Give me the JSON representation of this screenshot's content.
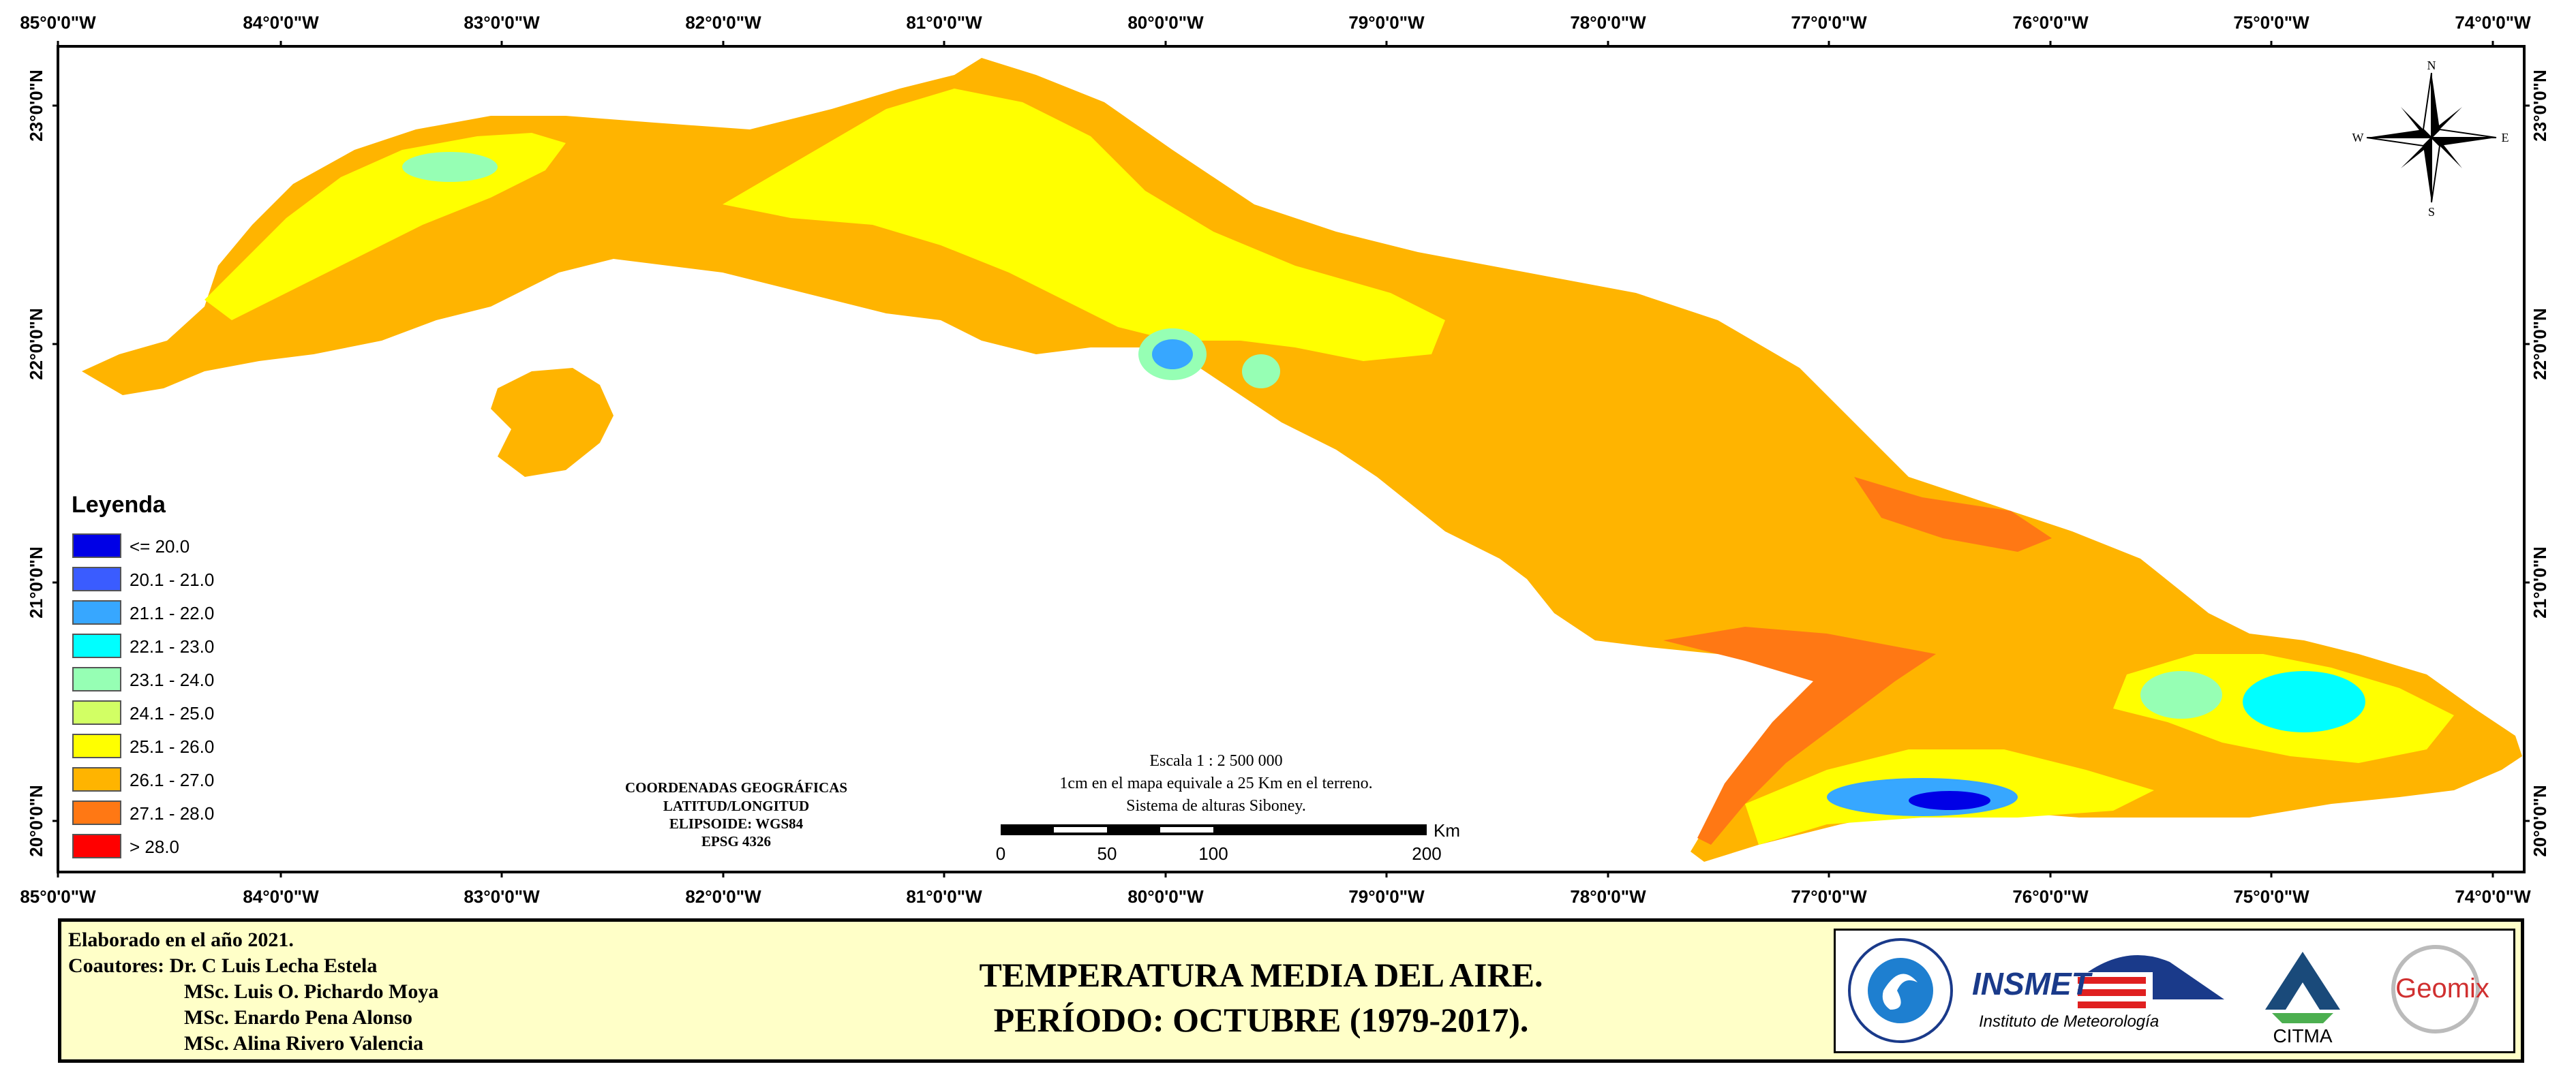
{
  "map": {
    "longitude_labels": [
      "85°0'0\"W",
      "84°0'0\"W",
      "83°0'0\"W",
      "82°0'0\"W",
      "81°0'0\"W",
      "80°0'0\"W",
      "79°0'0\"W",
      "78°0'0\"W",
      "77°0'0\"W",
      "76°0'0\"W",
      "75°0'0\"W",
      "74°0'0\"W"
    ],
    "latitude_labels": [
      "23°0'0\"N",
      "22°0'0\"N",
      "21°0'0\"N",
      "20°0'0\"N"
    ],
    "compass": {
      "n": "N",
      "s": "S",
      "e": "E",
      "w": "W"
    }
  },
  "legend": {
    "title": "Leyenda",
    "items": [
      {
        "label": "<= 20.0",
        "color": "#0000e6"
      },
      {
        "label": "20.1 - 21.0",
        "color": "#3a5cff"
      },
      {
        "label": "21.1 - 22.0",
        "color": "#37a7ff"
      },
      {
        "label": "22.1 - 23.0",
        "color": "#00ffff"
      },
      {
        "label": "23.1 - 24.0",
        "color": "#96ffb4"
      },
      {
        "label": "24.1 - 25.0",
        "color": "#d2ff64"
      },
      {
        "label": "25.1 - 26.0",
        "color": "#ffff00"
      },
      {
        "label": "26.1 - 27.0",
        "color": "#ffb400"
      },
      {
        "label": "27.1 - 28.0",
        "color": "#ff7814"
      },
      {
        "label": "> 28.0",
        "color": "#ff0000"
      }
    ]
  },
  "coordinates_info": {
    "line1": "COORDENADAS GEOGRÁFICAS",
    "line2": "LATITUD/LONGITUD",
    "line3": "ELIPSOIDE: WGS84",
    "line4": "EPSG 4326"
  },
  "scale": {
    "line1": "Escala 1 : 2 500 000",
    "line2": "1cm en el mapa equivale a 25 Km en el terreno.",
    "line3": "Sistema de alturas Siboney.",
    "unit": "Km",
    "ticks": [
      "0",
      "50",
      "100",
      "200"
    ]
  },
  "footer": {
    "elaborado": "Elaborado en el año 2021.",
    "coautores_label": "Coautores:",
    "authors": [
      "Dr. C Luis Lecha Estela",
      "MSc. Luis O. Pichardo Moya",
      "MSc. Enardo Pena Alonso",
      "MSc. Alina Rivero Valencia"
    ],
    "title_line1": "TEMPERATURA MEDIA DEL AIRE.",
    "title_line2": "PERÍODO: OCTUBRE (1979-2017).",
    "logos": {
      "insmet_name": "INSMET",
      "insmet_sub": "Instituto de Meteorología",
      "citma": "CITMA",
      "geomix": "Geomix"
    }
  }
}
